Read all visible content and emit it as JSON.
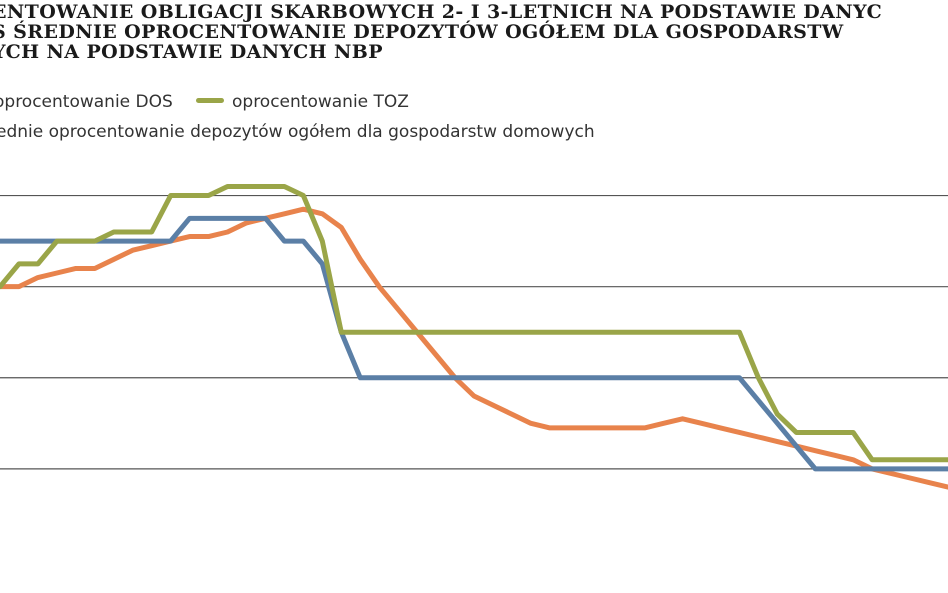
{
  "title_lines": [
    "entowanie obligacji skarbowych 2- i 3-letnich na podstawie danyc",
    "s średnie oprocentowanie depozytów ogółem dla gospodarstw",
    "ych na podstawie danych NBP"
  ],
  "legend": {
    "dos": "oprocentowanie DOS",
    "toz": "oprocentowanie TOZ",
    "deposits": "ednie oprocentowanie depozytów ogółem dla gospodarstw domowych"
  },
  "colors": {
    "dos": "#5b7fa6",
    "toz": "#9aa548",
    "deposits": "#e8834c",
    "grid": "#555555"
  },
  "chart_data": {
    "type": "line",
    "x": [
      0,
      1,
      2,
      3,
      4,
      5,
      6,
      7,
      8,
      9,
      10,
      11,
      12,
      13,
      14,
      15,
      16,
      17,
      18,
      19,
      20,
      21,
      22,
      23,
      24,
      25,
      26,
      27,
      28,
      29,
      30,
      31,
      32,
      33,
      34,
      35,
      36,
      37,
      38,
      39,
      40,
      41,
      42,
      43,
      44,
      45,
      46,
      47,
      48,
      49,
      50
    ],
    "ylim": [
      0,
      4.5
    ],
    "gridlines": [
      1,
      2,
      3,
      4
    ],
    "grid": true,
    "legend_position": "top-left",
    "series": [
      {
        "name": "oprocentowanie DOS",
        "key": "dos",
        "values": [
          3.5,
          3.5,
          3.5,
          3.5,
          3.5,
          3.5,
          3.5,
          3.5,
          3.5,
          3.5,
          3.75,
          3.75,
          3.75,
          3.75,
          3.75,
          3.5,
          3.5,
          3.25,
          2.5,
          2.0,
          2.0,
          2.0,
          2.0,
          2.0,
          2.0,
          2.0,
          2.0,
          2.0,
          2.0,
          2.0,
          2.0,
          2.0,
          2.0,
          2.0,
          2.0,
          2.0,
          2.0,
          2.0,
          2.0,
          2.0,
          1.75,
          1.5,
          1.25,
          1.0,
          1.0,
          1.0,
          1.0,
          1.0,
          1.0,
          1.0,
          1.0
        ]
      },
      {
        "name": "oprocentowanie TOZ",
        "key": "toz",
        "values": [
          3.0,
          3.25,
          3.25,
          3.5,
          3.5,
          3.5,
          3.6,
          3.6,
          3.6,
          4.0,
          4.0,
          4.0,
          4.1,
          4.1,
          4.1,
          4.1,
          4.0,
          3.5,
          2.5,
          2.5,
          2.5,
          2.5,
          2.5,
          2.5,
          2.5,
          2.5,
          2.5,
          2.5,
          2.5,
          2.5,
          2.5,
          2.5,
          2.5,
          2.5,
          2.5,
          2.5,
          2.5,
          2.5,
          2.5,
          2.5,
          2.0,
          1.6,
          1.4,
          1.4,
          1.4,
          1.4,
          1.1,
          1.1,
          1.1,
          1.1,
          1.1
        ]
      },
      {
        "name": "średnie oprocentowanie depozytów ogółem dla gospodarstw domowych",
        "key": "deposits",
        "values": [
          3.0,
          3.0,
          3.1,
          3.15,
          3.2,
          3.2,
          3.3,
          3.4,
          3.45,
          3.5,
          3.55,
          3.55,
          3.6,
          3.7,
          3.75,
          3.8,
          3.85,
          3.8,
          3.65,
          3.3,
          3.0,
          2.75,
          2.5,
          2.25,
          2.0,
          1.8,
          1.7,
          1.6,
          1.5,
          1.45,
          1.45,
          1.45,
          1.45,
          1.45,
          1.45,
          1.5,
          1.55,
          1.5,
          1.45,
          1.4,
          1.35,
          1.3,
          1.25,
          1.2,
          1.15,
          1.1,
          1.0,
          0.95,
          0.9,
          0.85,
          0.8
        ]
      }
    ]
  }
}
